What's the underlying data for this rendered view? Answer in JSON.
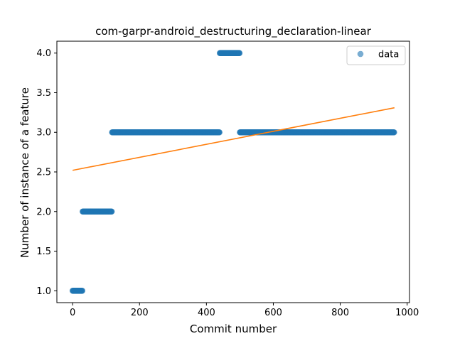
{
  "chart_data": {
    "type": "scatter",
    "title": "com-garpr-android_destructuring_declaration-linear",
    "xlabel": "Commit number",
    "ylabel": "Number of instance of a feature",
    "xlim": [
      -47,
      1007
    ],
    "ylim": [
      0.85,
      4.15
    ],
    "xticks": [
      0,
      200,
      400,
      600,
      800,
      1000
    ],
    "yticks": [
      1.0,
      1.5,
      2.0,
      2.5,
      3.0,
      3.5,
      4.0
    ],
    "xtick_labels": [
      "0",
      "200",
      "400",
      "600",
      "800",
      "1000"
    ],
    "ytick_labels": [
      "1.0",
      "1.5",
      "2.0",
      "2.5",
      "3.0",
      "3.5",
      "4.0"
    ],
    "grid": false,
    "legend": {
      "position": "top-right",
      "entries": [
        "data"
      ]
    },
    "series": [
      {
        "name": "data",
        "kind": "scatter",
        "color": "#1f77b4",
        "runs": [
          {
            "x_start": 0,
            "x_end": 30,
            "y": 1.0
          },
          {
            "x_start": 30,
            "x_end": 118,
            "y": 2.0
          },
          {
            "x_start": 118,
            "x_end": 440,
            "y": 3.0
          },
          {
            "x_start": 440,
            "x_end": 500,
            "y": 4.0
          },
          {
            "x_start": 500,
            "x_end": 962,
            "y": 3.0
          }
        ]
      },
      {
        "kind": "line",
        "color": "#ff7f0e",
        "x": [
          0,
          962
        ],
        "y": [
          2.52,
          3.31
        ]
      }
    ]
  }
}
